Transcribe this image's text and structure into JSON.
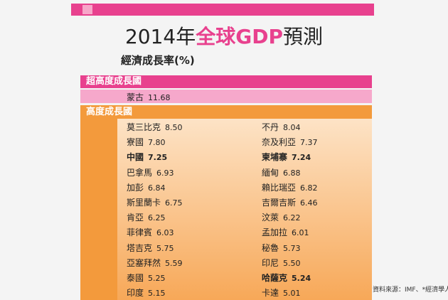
{
  "header": {
    "title_parts": [
      "2014年",
      "全球GDP",
      "預測"
    ],
    "subtitle": "經濟成長率(%)"
  },
  "sections": [
    {
      "label": "超高度成長國",
      "rows": [
        [
          {
            "name": "蒙古",
            "value": "11.68"
          }
        ]
      ]
    },
    {
      "label": "高度成長國",
      "rows": [
        [
          {
            "name": "莫三比克",
            "value": "8.50"
          },
          {
            "name": "不丹",
            "value": "8.04"
          }
        ],
        [
          {
            "name": "寮國",
            "value": "7.80"
          },
          {
            "name": "奈及利亞",
            "value": "7.37"
          }
        ],
        [
          {
            "name": "中國",
            "value": "7.25",
            "bold": true
          },
          {
            "name": "柬埔寨",
            "value": "7.24",
            "bold": true
          }
        ],
        [
          {
            "name": "巴拿馬",
            "value": "6.93"
          },
          {
            "name": "緬甸",
            "value": "6.88"
          }
        ],
        [
          {
            "name": "加彭",
            "value": "6.84"
          },
          {
            "name": "賴比瑞亞",
            "value": "6.82"
          }
        ],
        [
          {
            "name": "斯里蘭卡",
            "value": "6.75"
          },
          {
            "name": "吉爾吉斯",
            "value": "6.46"
          }
        ],
        [
          {
            "name": "肯亞",
            "value": "6.25"
          },
          {
            "name": "汶萊",
            "value": "6.22"
          }
        ],
        [
          {
            "name": "菲律賓",
            "value": "6.03"
          },
          {
            "name": "孟加拉",
            "value": "6.01"
          }
        ],
        [
          {
            "name": "塔吉克",
            "value": "5.75"
          },
          {
            "name": "秘魯",
            "value": "5.73"
          }
        ],
        [
          {
            "name": "亞塞拜然",
            "value": "5.59"
          },
          {
            "name": "印尼",
            "value": "5.50"
          }
        ],
        [
          {
            "name": "泰國",
            "value": "5.25"
          },
          {
            "name": "哈薩克",
            "value": "5.24",
            "bold": true
          }
        ],
        [
          {
            "name": "印度",
            "value": "5.15"
          },
          {
            "name": "卡達",
            "value": "5.01"
          }
        ]
      ]
    }
  ],
  "source": "資料來源：IMF、*經濟學人"
}
